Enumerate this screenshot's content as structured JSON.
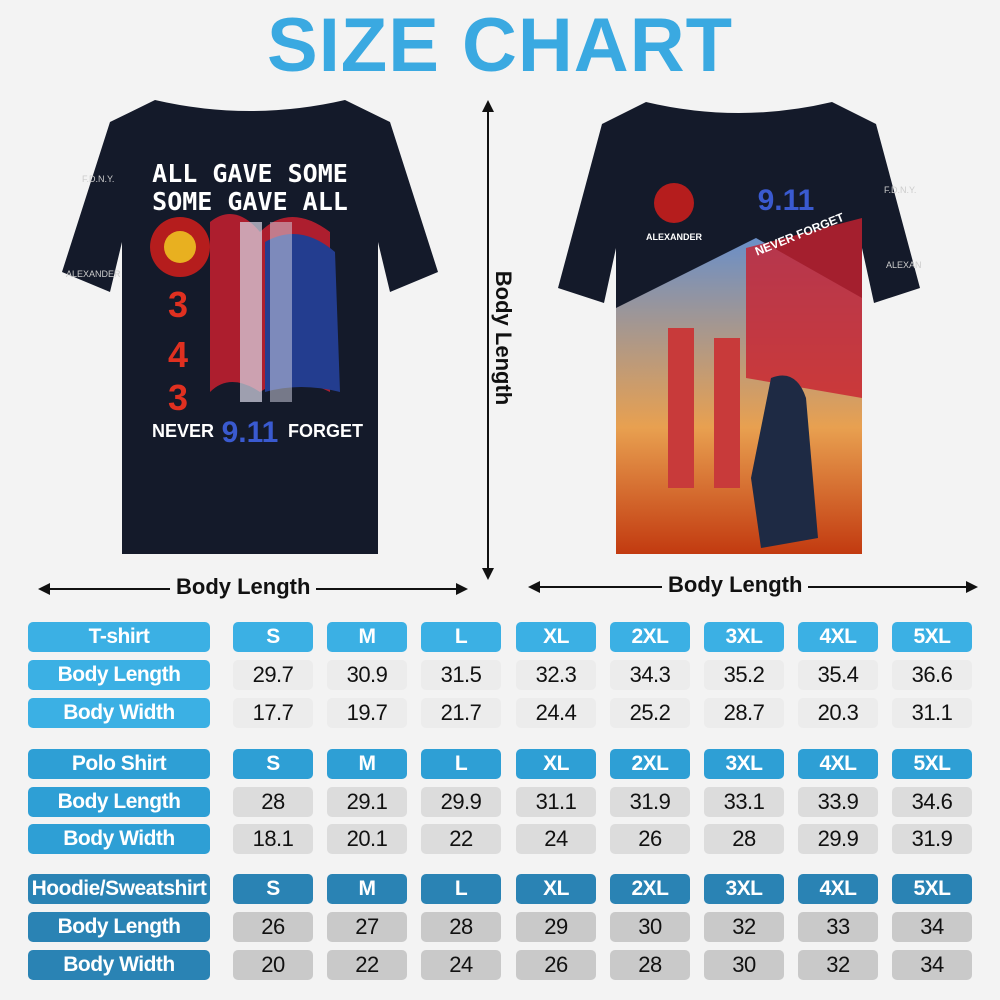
{
  "title": "SIZE CHART",
  "measure_labels": {
    "vertical": "Body Length",
    "left_horizontal": "Body Length",
    "right_horizontal": "Body Length"
  },
  "back_shirt": {
    "text_line1": "ALL GAVE SOME",
    "text_line2": "SOME GAVE ALL",
    "number": "343",
    "never": "NEVER",
    "date": "9.11",
    "forget": "FORGET",
    "sleeve_text": "F.D.N.Y.",
    "sleeve_name": "ALEXANDER"
  },
  "front_shirt": {
    "date": "9.11",
    "banner": "NEVER FORGET",
    "name": "ALEXANDER",
    "sleeve_text": "F.D.N.Y.",
    "sleeve_name": "ALEXANDER"
  },
  "sizes": [
    "S",
    "M",
    "L",
    "XL",
    "2XL",
    "3XL",
    "4XL",
    "5XL"
  ],
  "colors": {
    "title": "#3aa9e1",
    "tshirt": "#3bb0e4",
    "polo": "#2e9fd5",
    "hoodie": "#2a83b4"
  },
  "tables": [
    {
      "name": "T-shirt",
      "rows": [
        {
          "label": "Body Length",
          "values": [
            "29.7",
            "30.9",
            "31.5",
            "32.3",
            "34.3",
            "35.2",
            "35.4",
            "36.6"
          ]
        },
        {
          "label": "Body Width",
          "values": [
            "17.7",
            "19.7",
            "21.7",
            "24.4",
            "25.2",
            "28.7",
            "20.3",
            "31.1"
          ]
        }
      ]
    },
    {
      "name": "Polo Shirt",
      "rows": [
        {
          "label": "Body Length",
          "values": [
            "28",
            "29.1",
            "29.9",
            "31.1",
            "31.9",
            "33.1",
            "33.9",
            "34.6"
          ]
        },
        {
          "label": "Body Width",
          "values": [
            "18.1",
            "20.1",
            "22",
            "24",
            "26",
            "28",
            "29.9",
            "31.9"
          ]
        }
      ]
    },
    {
      "name": "Hoodie/Sweatshirt",
      "rows": [
        {
          "label": "Body Length",
          "values": [
            "26",
            "27",
            "28",
            "29",
            "30",
            "32",
            "33",
            "34"
          ]
        },
        {
          "label": "Body Width",
          "values": [
            "20",
            "22",
            "24",
            "26",
            "28",
            "30",
            "32",
            "34"
          ]
        }
      ]
    }
  ]
}
